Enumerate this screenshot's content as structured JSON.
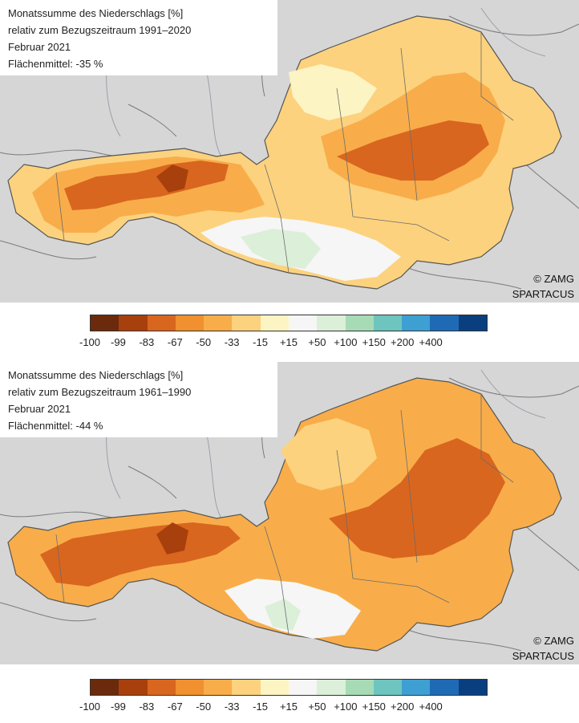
{
  "panels": [
    {
      "title": "Monatssumme des Niederschlags [%]",
      "reference_period": "relativ zum Bezugszeitraum 1991–2020",
      "month": "Februar 2021",
      "area_mean": "Flächenmittel: -35 %",
      "credit_line1": "© ZAMG",
      "credit_line2": "SPARTACUS"
    },
    {
      "title": "Monatssumme des Niederschlags [%]",
      "reference_period": "relativ zum Bezugszeitraum 1961–1990",
      "month": "Februar 2021",
      "area_mean": "Flächenmittel: -44 %",
      "credit_line1": "© ZAMG",
      "credit_line2": "SPARTACUS"
    }
  ],
  "legend": {
    "ticks": [
      "-100",
      "-99",
      "-83",
      "-67",
      "-50",
      "-33",
      "-15",
      "+15",
      "+50",
      "+100",
      "+150",
      "+200",
      "+400"
    ],
    "colors": [
      "#6b2a0b",
      "#a8400d",
      "#d9661e",
      "#f0902f",
      "#f8ad4a",
      "#fcd27e",
      "#fdf4c4",
      "#f6f6f6",
      "#dcefd9",
      "#a7dbb6",
      "#6ec5c0",
      "#3e9fd2",
      "#1f6ab4",
      "#0a3f7f"
    ]
  },
  "colors": {
    "background_map": "#d6d6d6",
    "austria_base_1": "#fcd27e",
    "austria_base_2": "#f8ad4a",
    "dry_dark": "#d9661e",
    "dry_darkest": "#a8400d",
    "wet": "#dcefd9"
  }
}
